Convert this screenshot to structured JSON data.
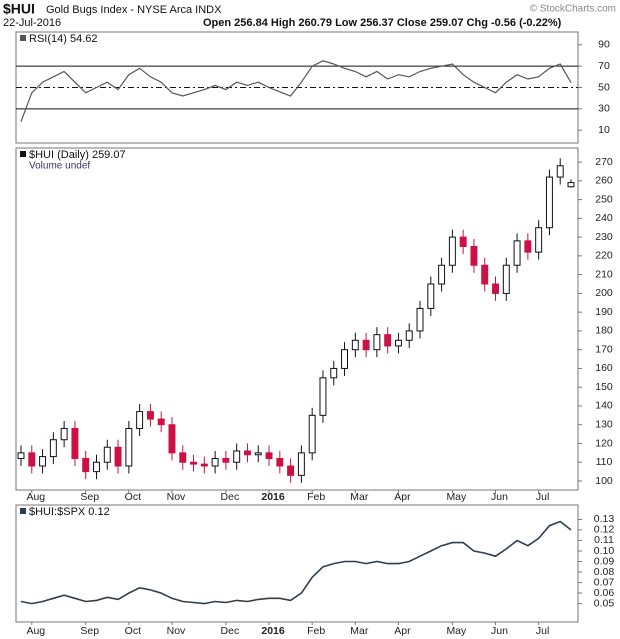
{
  "header": {
    "symbol": "$HUI",
    "name": "Gold Bugs Index - NYSE Arca INDX",
    "date": "22-Jul-2016",
    "quote": "Open 256.84 High 260.79 Low 256.37 Close 259.07 Chg -0.56 (-0.22%)",
    "copyright": "© StockCharts.com"
  },
  "chart_data": [
    {
      "type": "line",
      "title": "RSI(14) 54.62",
      "color": "#555555",
      "values": [
        18,
        45,
        55,
        60,
        65,
        55,
        45,
        50,
        55,
        48,
        62,
        68,
        60,
        55,
        45,
        42,
        45,
        48,
        52,
        48,
        55,
        52,
        55,
        50,
        46,
        42,
        55,
        70,
        75,
        72,
        68,
        65,
        60,
        65,
        58,
        62,
        60,
        65,
        68,
        70,
        72,
        62,
        55,
        50,
        45,
        55,
        62,
        58,
        60,
        68,
        72,
        54.62
      ],
      "ylim": [
        -2,
        102
      ],
      "yticks": [
        10,
        30,
        50,
        70,
        90
      ],
      "hlines": [
        70,
        30
      ],
      "dashed_line": 50
    },
    {
      "type": "candlestick",
      "title": "$HUI (Daily) 259.07",
      "subtitle": "Volume undef",
      "up_color": "#111111",
      "down_color": "#cc1144",
      "categories": [
        null,
        "Aug",
        null,
        null,
        null,
        null,
        "Sep",
        null,
        null,
        null,
        "Oct",
        null,
        null,
        null,
        "Nov",
        null,
        null,
        null,
        null,
        "Dec",
        null,
        null,
        null,
        "2016",
        null,
        null,
        null,
        "Feb",
        null,
        null,
        null,
        "Mar",
        null,
        null,
        null,
        "Apr",
        null,
        null,
        null,
        null,
        "May",
        null,
        null,
        null,
        "Jun",
        null,
        null,
        null,
        "Jul",
        null,
        null,
        null
      ],
      "open": [
        112,
        115,
        108,
        113,
        122,
        128,
        112,
        105,
        110,
        118,
        108,
        128,
        137,
        133,
        130,
        115,
        110,
        109,
        108,
        112,
        110,
        116,
        114,
        115,
        112,
        108,
        103,
        115,
        135,
        155,
        160,
        170,
        175,
        170,
        178,
        172,
        175,
        180,
        192,
        205,
        215,
        230,
        225,
        215,
        205,
        200,
        215,
        228,
        222,
        235,
        262,
        256.84
      ],
      "high": [
        119,
        119,
        117,
        126,
        132,
        132,
        116,
        114,
        122,
        122,
        132,
        141,
        141,
        137,
        134,
        119,
        114,
        113,
        116,
        116,
        120,
        120,
        119,
        119,
        116,
        112,
        119,
        139,
        159,
        164,
        174,
        179,
        179,
        182,
        182,
        179,
        184,
        196,
        209,
        219,
        234,
        234,
        229,
        219,
        209,
        219,
        232,
        232,
        239,
        266,
        272,
        260.79
      ],
      "low": [
        108,
        104,
        104,
        109,
        118,
        108,
        101,
        101,
        106,
        104,
        104,
        124,
        129,
        126,
        111,
        106,
        105,
        104,
        104,
        106,
        106,
        110,
        110,
        108,
        104,
        99,
        99,
        111,
        131,
        151,
        156,
        166,
        166,
        166,
        168,
        168,
        171,
        176,
        188,
        201,
        211,
        221,
        211,
        201,
        196,
        196,
        211,
        218,
        218,
        231,
        258,
        256.37
      ],
      "close": [
        115,
        108,
        113,
        122,
        128,
        112,
        105,
        110,
        118,
        108,
        128,
        137,
        133,
        130,
        115,
        110,
        109,
        108,
        112,
        110,
        116,
        114,
        115,
        112,
        108,
        103,
        115,
        135,
        155,
        160,
        170,
        175,
        170,
        178,
        172,
        175,
        180,
        192,
        205,
        215,
        230,
        225,
        215,
        205,
        200,
        215,
        228,
        222,
        235,
        262,
        268,
        259.07
      ],
      "ylim": [
        95.2,
        277.5
      ],
      "yticks": [
        100,
        110,
        120,
        130,
        140,
        150,
        160,
        170,
        180,
        190,
        200,
        210,
        220,
        230,
        240,
        250,
        260,
        270
      ]
    },
    {
      "type": "line",
      "title": "$HUI:$SPX 0.12",
      "color": "#2f3e4e",
      "categories": [
        null,
        "Aug",
        null,
        null,
        null,
        null,
        "Sep",
        null,
        null,
        null,
        "Oct",
        null,
        null,
        null,
        "Nov",
        null,
        null,
        null,
        null,
        "Dec",
        null,
        null,
        null,
        "2016",
        null,
        null,
        null,
        "Feb",
        null,
        null,
        null,
        "Mar",
        null,
        null,
        null,
        "Apr",
        null,
        null,
        null,
        null,
        "May",
        null,
        null,
        null,
        "Jun",
        null,
        null,
        null,
        "Jul",
        null,
        null,
        null
      ],
      "values": [
        0.052,
        0.05,
        0.052,
        0.055,
        0.058,
        0.055,
        0.052,
        0.053,
        0.056,
        0.054,
        0.06,
        0.065,
        0.063,
        0.06,
        0.055,
        0.052,
        0.051,
        0.05,
        0.052,
        0.051,
        0.053,
        0.052,
        0.054,
        0.055,
        0.055,
        0.053,
        0.06,
        0.075,
        0.085,
        0.088,
        0.09,
        0.09,
        0.088,
        0.09,
        0.088,
        0.088,
        0.09,
        0.095,
        0.1,
        0.105,
        0.108,
        0.108,
        0.1,
        0.098,
        0.095,
        0.102,
        0.11,
        0.105,
        0.112,
        0.124,
        0.128,
        0.12
      ],
      "ylim": [
        0.0325,
        0.1437
      ],
      "yticks": [
        0.05,
        0.06,
        0.07,
        0.08,
        0.09,
        {
          "value": 0.1,
          "label": "0.10"
        },
        0.11,
        0.12,
        0.13
      ]
    }
  ]
}
